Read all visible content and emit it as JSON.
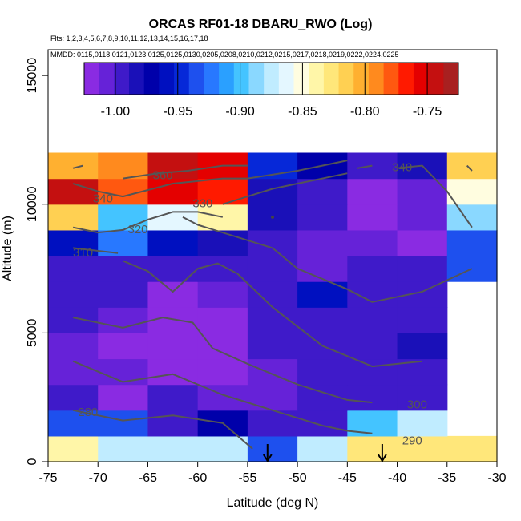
{
  "chart_data": {
    "type": "heatmap",
    "title": "ORCAS RF01-18 DBARU_RWO (Log)",
    "flights_label": "Flts: 1,2,3,4,5,6,7,8,9,10,11,12,13,14,15,16,17,18",
    "dates_label": "MMDD: 0115,0118,0121,0123,0125,0125,0130,0205,0208,0210,0212,0215,0217,0218,0219,0222,0224,0225",
    "xlabel": "Latitude (deg N)",
    "ylabel": "Altitude (m)",
    "xlim": [
      -75,
      -30
    ],
    "ylim": [
      0,
      16000
    ],
    "x_ticks": [
      -75,
      -70,
      -65,
      -60,
      -55,
      -50,
      -45,
      -40,
      -35,
      -30
    ],
    "x_tick_labels": [
      "-75",
      "-70",
      "-65",
      "-60",
      "-55",
      "-50",
      "-45",
      "-40",
      "-35",
      "-30"
    ],
    "y_ticks": [
      0,
      5000,
      10000,
      15000
    ],
    "y_tick_labels": [
      "0",
      "5000",
      "10000",
      "15000"
    ],
    "colorbar": {
      "range": [
        -1.025,
        -0.725
      ],
      "ticks": [
        -1.0,
        -0.95,
        -0.9,
        -0.85,
        -0.8,
        -0.75
      ],
      "tick_labels": [
        "-1.00",
        "-0.95",
        "-0.90",
        "-0.85",
        "-0.80",
        "-0.75"
      ],
      "colors": [
        "#8a2be2",
        "#6622d8",
        "#3f1ac9",
        "#1a10b8",
        "#0000aa",
        "#0010c0",
        "#0628d8",
        "#1e50ee",
        "#2878ff",
        "#2aa0ff",
        "#44c4ff",
        "#8ad8ff",
        "#c0ecff",
        "#e4f7ff",
        "#fffde0",
        "#fff6a8",
        "#ffe77a",
        "#ffd052",
        "#ffb030",
        "#ff8a1e",
        "#ff5810",
        "#ff1a00",
        "#e40000",
        "#c41010",
        "#a82020"
      ]
    },
    "lat_bins": [
      -75,
      -70,
      -65,
      -60,
      -55,
      -50,
      -45,
      -40,
      -35,
      -30
    ],
    "alt_bins": [
      0,
      1000,
      2000,
      3000,
      4000,
      5000,
      6000,
      7000,
      8000,
      9000,
      10000,
      11000,
      12000
    ],
    "grid_values": [
      [
        -0.845,
        -0.873,
        -0.873,
        -0.873,
        -0.93,
        -0.88,
        -0.822,
        -0.825,
        -0.828,
        null
      ],
      [
        -0.94,
        -0.94,
        -0.99,
        -0.965,
        -1.0,
        -1.0,
        -0.895,
        -0.88,
        null,
        null
      ],
      [
        -1.0,
        -1.025,
        -1.0,
        -1.01,
        -1.01,
        -1.0,
        -1.0,
        -1.0,
        null,
        null
      ],
      [
        -1.01,
        -1.01,
        -1.015,
        -1.015,
        -1.005,
        -1.0,
        -1.0,
        -0.99,
        null,
        null
      ],
      [
        -1.01,
        -1.015,
        -1.02,
        -1.02,
        -1.0,
        -0.99,
        -1.0,
        -0.985,
        null,
        null
      ],
      [
        -1.0,
        -1.005,
        -1.02,
        -1.015,
        -1.0,
        -1.0,
        -1.0,
        -1.0,
        null,
        null
      ],
      [
        -1.0,
        -1.0,
        -1.02,
        -1.01,
        -1.0,
        -0.96,
        -1.0,
        -1.0,
        null,
        null
      ],
      [
        -1.0,
        -1.0,
        -0.995,
        -0.995,
        -1.0,
        -1.005,
        -0.99,
        -1.0,
        -0.94,
        null
      ],
      [
        -0.96,
        -0.92,
        -0.96,
        -0.985,
        -0.995,
        -1.005,
        -1.01,
        -1.02,
        -0.935,
        null
      ],
      [
        -0.815,
        -0.9,
        -0.865,
        -0.84,
        -0.98,
        -0.99,
        -1.02,
        -1.01,
        -0.89,
        null
      ],
      [
        -0.745,
        -0.775,
        -0.76,
        -0.765,
        -0.98,
        -0.995,
        -1.015,
        -1.005,
        -0.85,
        null
      ],
      [
        -0.805,
        -0.79,
        -0.745,
        -0.755,
        -0.95,
        -0.97,
        -0.99,
        -0.98,
        -0.81,
        null
      ]
    ],
    "contours": [
      {
        "label": "290",
        "points": [
          [
            -72.5,
            3900
          ],
          [
            -70,
            3500
          ],
          [
            -67.5,
            3100
          ],
          [
            -62.5,
            3400
          ],
          [
            -57.5,
            2600
          ],
          [
            -52.5,
            2000
          ],
          [
            -47.5,
            1400
          ],
          [
            -45,
            1200
          ],
          [
            -42.5,
            1100
          ]
        ]
      },
      {
        "label": "280",
        "points": [
          [
            -72.5,
            2000
          ],
          [
            -67.5,
            1600
          ],
          [
            -62.5,
            1800
          ],
          [
            -57.5,
            1500
          ],
          [
            -54.5,
            500
          ]
        ]
      },
      {
        "label": "300",
        "points": [
          [
            -72.5,
            5600
          ],
          [
            -67.5,
            5200
          ],
          [
            -63.5,
            5600
          ],
          [
            -60.5,
            5400
          ],
          [
            -58.5,
            4400
          ],
          [
            -55,
            3800
          ],
          [
            -52.5,
            3400
          ],
          [
            -50,
            3000
          ],
          [
            -47.5,
            2700
          ],
          [
            -45,
            2400
          ],
          [
            -42.5,
            2300
          ]
        ]
      },
      {
        "label": "",
        "points": [
          [
            -67.5,
            7800
          ],
          [
            -65,
            7400
          ],
          [
            -62.5,
            6600
          ],
          [
            -60,
            7500
          ],
          [
            -58,
            7700
          ],
          [
            -56,
            7300
          ],
          [
            -52.5,
            6000
          ],
          [
            -47.5,
            4500
          ],
          [
            -42.5,
            3700
          ],
          [
            -37.5,
            3900
          ]
        ]
      },
      {
        "label": "310",
        "points": [
          [
            -72.5,
            8300
          ],
          [
            -68,
            8100
          ]
        ]
      },
      {
        "label": "",
        "points": [
          [
            -61.5,
            9500
          ],
          [
            -60,
            9200
          ],
          [
            -52.5,
            8300
          ],
          [
            -50,
            7500
          ],
          [
            -47.5,
            7100
          ],
          [
            -45,
            6700
          ],
          [
            -42.5,
            6200
          ],
          [
            -37.5,
            6600
          ],
          [
            -32.5,
            7500
          ]
        ]
      },
      {
        "label": "320",
        "points": [
          [
            -72.5,
            9100
          ],
          [
            -70,
            8900
          ],
          [
            -67.5,
            9000
          ],
          [
            -65,
            9400
          ],
          [
            -62.5,
            9700
          ],
          [
            -60,
            9700
          ],
          [
            -57.5,
            9500
          ]
        ]
      },
      {
        "label": "330",
        "points": [
          [
            -72.5,
            10800
          ],
          [
            -70,
            10500
          ],
          [
            -67.5,
            10300
          ],
          [
            -62.5,
            10800
          ],
          [
            -57.5,
            11000
          ],
          [
            -55,
            11000
          ],
          [
            -50,
            11300
          ],
          [
            -47.5,
            11500
          ],
          [
            -45,
            11700
          ]
        ]
      },
      {
        "label": "",
        "points": [
          [
            -57.5,
            10000
          ],
          [
            -55,
            10300
          ],
          [
            -52.5,
            10600
          ],
          [
            -50,
            10800
          ],
          [
            -45,
            11200
          ]
        ]
      },
      {
        "label": "360",
        "points": [
          [
            -72.5,
            11400
          ],
          [
            -71.5,
            11500
          ]
        ]
      },
      {
        "label": "",
        "points": [
          [
            -67.5,
            11000
          ],
          [
            -64,
            11200
          ],
          [
            -61,
            11300
          ],
          [
            -57.5,
            11500
          ],
          [
            -55,
            11500
          ]
        ]
      },
      {
        "label": "340",
        "points": [
          [
            -44,
            11400
          ],
          [
            -42.5,
            11500
          ]
        ]
      },
      {
        "label": "",
        "points": [
          [
            -40,
            11400
          ],
          [
            -37.5,
            11500
          ],
          [
            -35,
            10500
          ],
          [
            -32.5,
            9100
          ]
        ]
      },
      {
        "label": "",
        "points": [
          [
            -33,
            11500
          ],
          [
            -32.5,
            11300
          ]
        ]
      }
    ],
    "contour_labels": [
      {
        "text": "360",
        "x": -63.5,
        "y": 11100
      },
      {
        "text": "340",
        "x": -69.5,
        "y": 10200
      },
      {
        "text": "330",
        "x": -59.5,
        "y": 10000
      },
      {
        "text": "320",
        "x": -66,
        "y": 9000
      },
      {
        "text": "310",
        "x": -71.5,
        "y": 8100
      },
      {
        "text": "340",
        "x": -39.5,
        "y": 11400
      },
      {
        "text": "300",
        "x": -38,
        "y": 2200
      },
      {
        "text": "290",
        "x": -38.5,
        "y": 800
      },
      {
        "text": "280",
        "x": -71,
        "y": 1900
      }
    ],
    "arrow_markers": [
      {
        "x": -53,
        "y": 0
      },
      {
        "x": -41.5,
        "y": 0
      }
    ],
    "dot_markers": [
      {
        "x": -52.5,
        "y": 9500
      }
    ]
  }
}
